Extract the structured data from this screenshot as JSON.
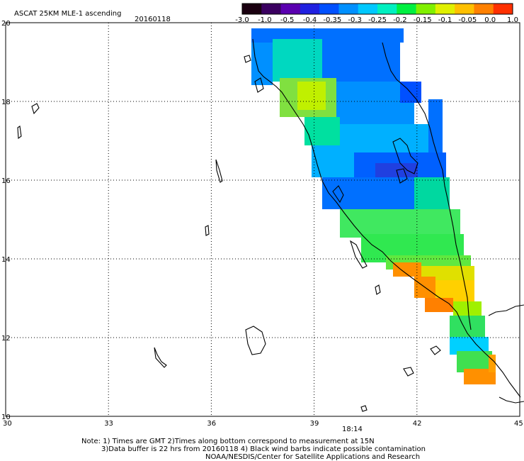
{
  "title": "ASCAT 25KM MLE-1 ascending",
  "date": "20160118",
  "colorbar": {
    "ticks": [
      "-3.0",
      "-1.0",
      "-0.5",
      "-0.4",
      "-0.35",
      "-0.3",
      "-0.25",
      "-0.2",
      "-0.15",
      "-0.1",
      "-0.05",
      "0.0",
      "1.0"
    ],
    "colors": [
      "#1a0010",
      "#3a0060",
      "#5a00b0",
      "#2020e0",
      "#0050ff",
      "#0090ff",
      "#00c8ff",
      "#00f0c0",
      "#00f040",
      "#80f000",
      "#e0f000",
      "#ffc000",
      "#ff8000",
      "#ff3000"
    ]
  },
  "axes": {
    "x_ticks": [
      "30",
      "33",
      "36",
      "39",
      "42",
      "45"
    ],
    "y_ticks": [
      "20",
      "18",
      "16",
      "14",
      "12",
      "10"
    ],
    "lon_range": [
      30,
      45
    ],
    "lat_range": [
      10,
      20
    ]
  },
  "time_label": "18:14",
  "time_color": "#e02000",
  "notes": {
    "line1": "Note: 1) Times are GMT 2)Times along bottom correspond to measurement at 15N",
    "line2": "3)Data buffer is 22 hrs from 20160118 4) Black wind barbs indicate possible contamination",
    "line3": "NOAA/NESDIS/Center for Satellite Applications and Research"
  }
}
